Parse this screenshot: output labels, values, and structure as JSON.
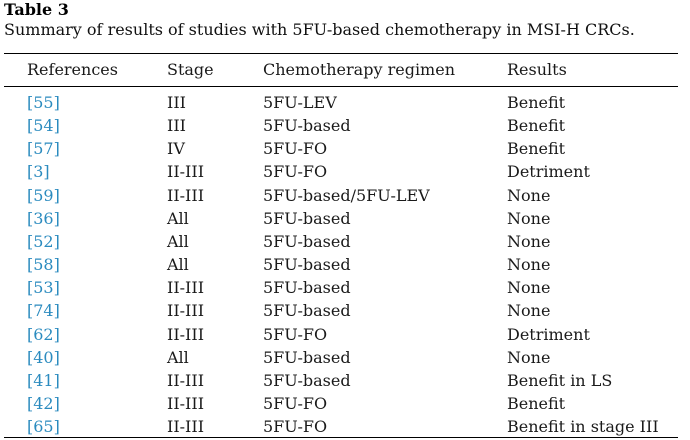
{
  "table": {
    "label": "Table 3",
    "caption": "Summary of results of studies with 5FU-based chemotherapy in MSI-H CRCs.",
    "headers": {
      "references": "References",
      "stage": "Stage",
      "regimen": "Chemotherapy regimen",
      "results": "Results"
    },
    "rows": [
      {
        "ref": "[55]",
        "stage": "III",
        "regimen": "5FU-LEV",
        "result": "Benefit"
      },
      {
        "ref": "[54]",
        "stage": "III",
        "regimen": "5FU-based",
        "result": "Benefit"
      },
      {
        "ref": "[57]",
        "stage": "IV",
        "regimen": "5FU-FO",
        "result": "Benefit"
      },
      {
        "ref": "[3]",
        "stage": "II-III",
        "regimen": "5FU-FO",
        "result": "Detriment"
      },
      {
        "ref": "[59]",
        "stage": "II-III",
        "regimen": "5FU-based/5FU-LEV",
        "result": "None"
      },
      {
        "ref": "[36]",
        "stage": "All",
        "regimen": "5FU-based",
        "result": "None"
      },
      {
        "ref": "[52]",
        "stage": "All",
        "regimen": "5FU-based",
        "result": "None"
      },
      {
        "ref": "[58]",
        "stage": "All",
        "regimen": "5FU-based",
        "result": "None"
      },
      {
        "ref": "[53]",
        "stage": "II-III",
        "regimen": "5FU-based",
        "result": "None"
      },
      {
        "ref": "[74]",
        "stage": "II-III",
        "regimen": "5FU-based",
        "result": "None"
      },
      {
        "ref": "[62]",
        "stage": "II-III",
        "regimen": "5FU-FO",
        "result": "Detriment"
      },
      {
        "ref": "[40]",
        "stage": "All",
        "regimen": "5FU-based",
        "result": "None"
      },
      {
        "ref": "[41]",
        "stage": "II-III",
        "regimen": "5FU-based",
        "result": "Benefit in LS"
      },
      {
        "ref": "[42]",
        "stage": "II-III",
        "regimen": "5FU-FO",
        "result": "Benefit"
      },
      {
        "ref": "[65]",
        "stage": "II-III",
        "regimen": "5FU-FO",
        "result": "Benefit in stage III"
      }
    ]
  },
  "colors": {
    "reference_link": "#2b8bbf",
    "text": "#1a1a1a",
    "rule": "#000000"
  }
}
